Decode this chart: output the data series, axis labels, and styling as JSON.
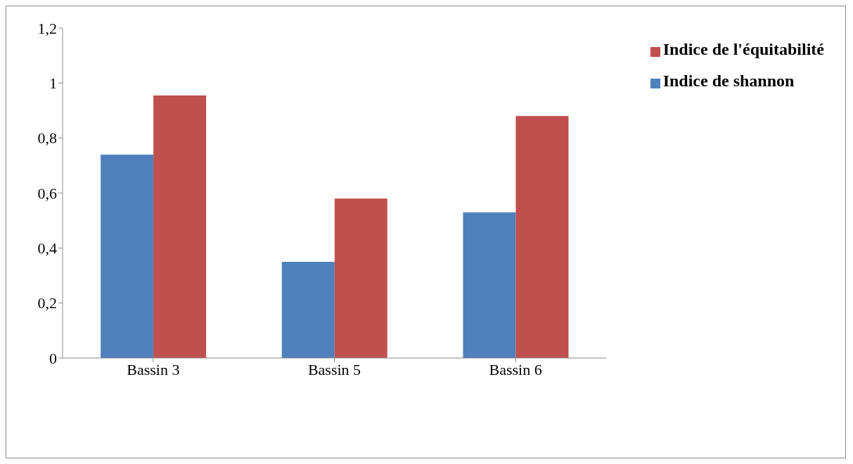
{
  "chart_data": {
    "type": "bar",
    "categories": [
      "Bassin 3",
      "Bassin 5",
      "Bassin 6"
    ],
    "series": [
      {
        "name": "Indice de shannon",
        "color": "#4f81bd",
        "values": [
          0.74,
          0.35,
          0.53
        ]
      },
      {
        "name": "Indice de l'équitabilité",
        "color": "#c0504d",
        "values": [
          0.955,
          0.58,
          0.88
        ]
      }
    ],
    "ylim": [
      0,
      1.2
    ],
    "yticks": [
      0,
      {
        "value": 0.2,
        "label": "0,2"
      },
      {
        "value": 0.4,
        "label": "0,4"
      },
      {
        "value": 0.6,
        "label": "0,6"
      },
      {
        "value": 0.8,
        "label": "0,8"
      },
      1,
      {
        "value": 1.2,
        "label": "1,2"
      }
    ],
    "grid": false,
    "legend": "top right"
  }
}
